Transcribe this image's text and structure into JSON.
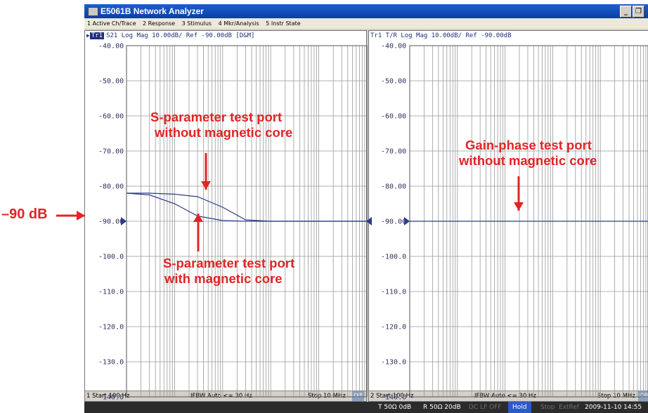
{
  "window": {
    "title": "E5061B Network Analyzer"
  },
  "menu": [
    "1 Active Ch/Trace",
    "2 Response",
    "3 Stimulus",
    "4 Mkr/Analysis",
    "5 Instr State"
  ],
  "left_pane": {
    "trace_tag": "Tr1",
    "header": "S21 Log Mag 10.00dB/ Ref -90.00dB [D&M]",
    "y_ticks": [
      "-40.00",
      "-50.00",
      "-60.00",
      "-70.00",
      "-80.00",
      "-90.00",
      "-100.0",
      "-110.0",
      "-120.0",
      "-130.0",
      "-140.0"
    ],
    "footer": {
      "start": "1 Start 100 Hz",
      "ifbw": "IFBW Auto <= 30 Hz",
      "stop": "Stop 10 MHz",
      "off": "Off"
    }
  },
  "right_pane": {
    "header": "Tr1 T/R Log Mag 10.00dB/ Ref -90.00dB",
    "y_ticks": [
      "-40.00",
      "-50.00",
      "-60.00",
      "-70.00",
      "-80.00",
      "-90.00",
      "-100.0",
      "-110.0",
      "-120.0",
      "-130.0",
      "-140.0"
    ],
    "footer": {
      "start": "2 Start 100 Hz",
      "ifbw": "IFBW Auto <= 30 Hz",
      "stop": "Stop 10 MHz",
      "off": "Off"
    }
  },
  "status_bar": {
    "t_port": "T 50Ω 0dB",
    "r_port": "R 50Ω 20dB",
    "dclf": "DC LF OFF",
    "hold": "Hold",
    "stop": "Stop",
    "extref": "ExtRef",
    "datetime": "2009-11-10 14:55"
  },
  "annotations": {
    "ref_label": "–90 dB",
    "s_param_without": [
      "S-parameter test port",
      "without magnetic core"
    ],
    "s_param_with": [
      "S-parameter test port",
      "with magnetic core"
    ],
    "gain_phase_without": [
      "Gain-phase test port",
      "without magnetic core"
    ]
  },
  "chart_data": [
    {
      "type": "line",
      "title": "S21 Log Mag 10.00dB/ Ref -90.00dB [D&M]",
      "x_scale": "log",
      "x_range_hz": [
        100,
        10000000
      ],
      "ylim": [
        -140,
        -40
      ],
      "ref_level_db": -90,
      "series": [
        {
          "name": "S-parameter test port without magnetic core",
          "x_hz": [
            100,
            300,
            1000,
            3000,
            10000,
            30000,
            100000,
            1000000,
            10000000
          ],
          "y_db": [
            -82,
            -82,
            -82.3,
            -83,
            -86,
            -89.6,
            -90,
            -90,
            -90
          ]
        },
        {
          "name": "S-parameter test port with magnetic core",
          "x_hz": [
            100,
            300,
            1000,
            3000,
            10000,
            30000,
            100000,
            1000000,
            10000000
          ],
          "y_db": [
            -82,
            -82.5,
            -85,
            -88.5,
            -89.8,
            -90,
            -90,
            -90,
            -90
          ]
        }
      ]
    },
    {
      "type": "line",
      "title": "T/R Log Mag 10.00dB/ Ref -90.00dB",
      "x_scale": "log",
      "x_range_hz": [
        100,
        10000000
      ],
      "ylim": [
        -140,
        -40
      ],
      "ref_level_db": -90,
      "series": [
        {
          "name": "Gain-phase test port without magnetic core",
          "x_hz": [
            100,
            1000,
            10000,
            100000,
            1000000,
            10000000
          ],
          "y_db": [
            -90,
            -90,
            -90,
            -90,
            -90,
            -90
          ]
        }
      ]
    }
  ]
}
